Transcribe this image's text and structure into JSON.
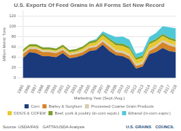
{
  "chart_data": {
    "type": "area",
    "stacked": true,
    "title": "U.S. Exports Of Feed Grains In All Forms Set New Record",
    "x_label": "Marketing Year (Sept./Aug.)",
    "y_label": "Million Metric Tons",
    "categories": [
      "1995",
      "1996",
      "1997",
      "1998",
      "1999",
      "2000",
      "2001",
      "2002",
      "2003",
      "2004",
      "2005",
      "2006",
      "2007",
      "2008",
      "2009",
      "2010",
      "2011",
      "2012",
      "2013",
      "2014",
      "2015",
      "2016",
      "2017",
      "2018"
    ],
    "series": [
      {
        "name": "Corn",
        "color": "#1a3a7c",
        "values": [
          38,
          50,
          48,
          42,
          42,
          40,
          48,
          38,
          40,
          44,
          52,
          54,
          64,
          52,
          44,
          42,
          36,
          18,
          22,
          46,
          50,
          58,
          52,
          50
        ]
      },
      {
        "name": "Barley & Sorghum",
        "color": "#d4842a",
        "values": [
          8,
          6,
          8,
          8,
          8,
          8,
          6,
          6,
          6,
          6,
          6,
          6,
          6,
          8,
          6,
          6,
          6,
          5,
          5,
          6,
          9,
          11,
          11,
          9
        ]
      },
      {
        "name": "Processed Coarse Grain Products",
        "color": "#d4cdb0",
        "values": [
          3,
          3,
          3,
          3,
          3,
          3,
          3,
          3,
          3,
          3,
          3,
          3,
          4,
          4,
          4,
          4,
          4,
          4,
          4,
          4,
          4,
          4,
          4,
          4
        ]
      },
      {
        "name": "DDGS & COFEM",
        "color": "#e8c832",
        "values": [
          2,
          2,
          2,
          2,
          2,
          2,
          3,
          3,
          3,
          4,
          5,
          6,
          8,
          8,
          9,
          10,
          10,
          8,
          8,
          9,
          8,
          8,
          7,
          7
        ]
      },
      {
        "name": "Beef, pork & poultry (in-corn equiv.)",
        "color": "#7a9e28",
        "values": [
          4,
          4,
          4,
          4,
          4,
          4,
          4,
          4,
          4,
          4,
          4,
          4,
          4,
          4,
          4,
          4,
          4,
          4,
          4,
          4,
          4,
          4,
          4,
          4
        ]
      },
      {
        "name": "Ethanol (in-corn equiv.)",
        "color": "#50c8d8",
        "values": [
          0,
          0,
          0,
          0,
          0,
          0,
          0,
          0,
          0,
          0,
          1,
          2,
          4,
          8,
          12,
          14,
          14,
          8,
          8,
          10,
          12,
          15,
          20,
          22
        ]
      }
    ],
    "ylim": [
      0,
      130
    ],
    "yticks": [
      0,
      20,
      40,
      60,
      80,
      100,
      120
    ],
    "grid": true,
    "legend": "bottom",
    "annotations": [
      "Source: USDA/FAS",
      "GATTA/USDA Analysis",
      "U.S. GRAINS",
      "COUNCIL"
    ]
  }
}
